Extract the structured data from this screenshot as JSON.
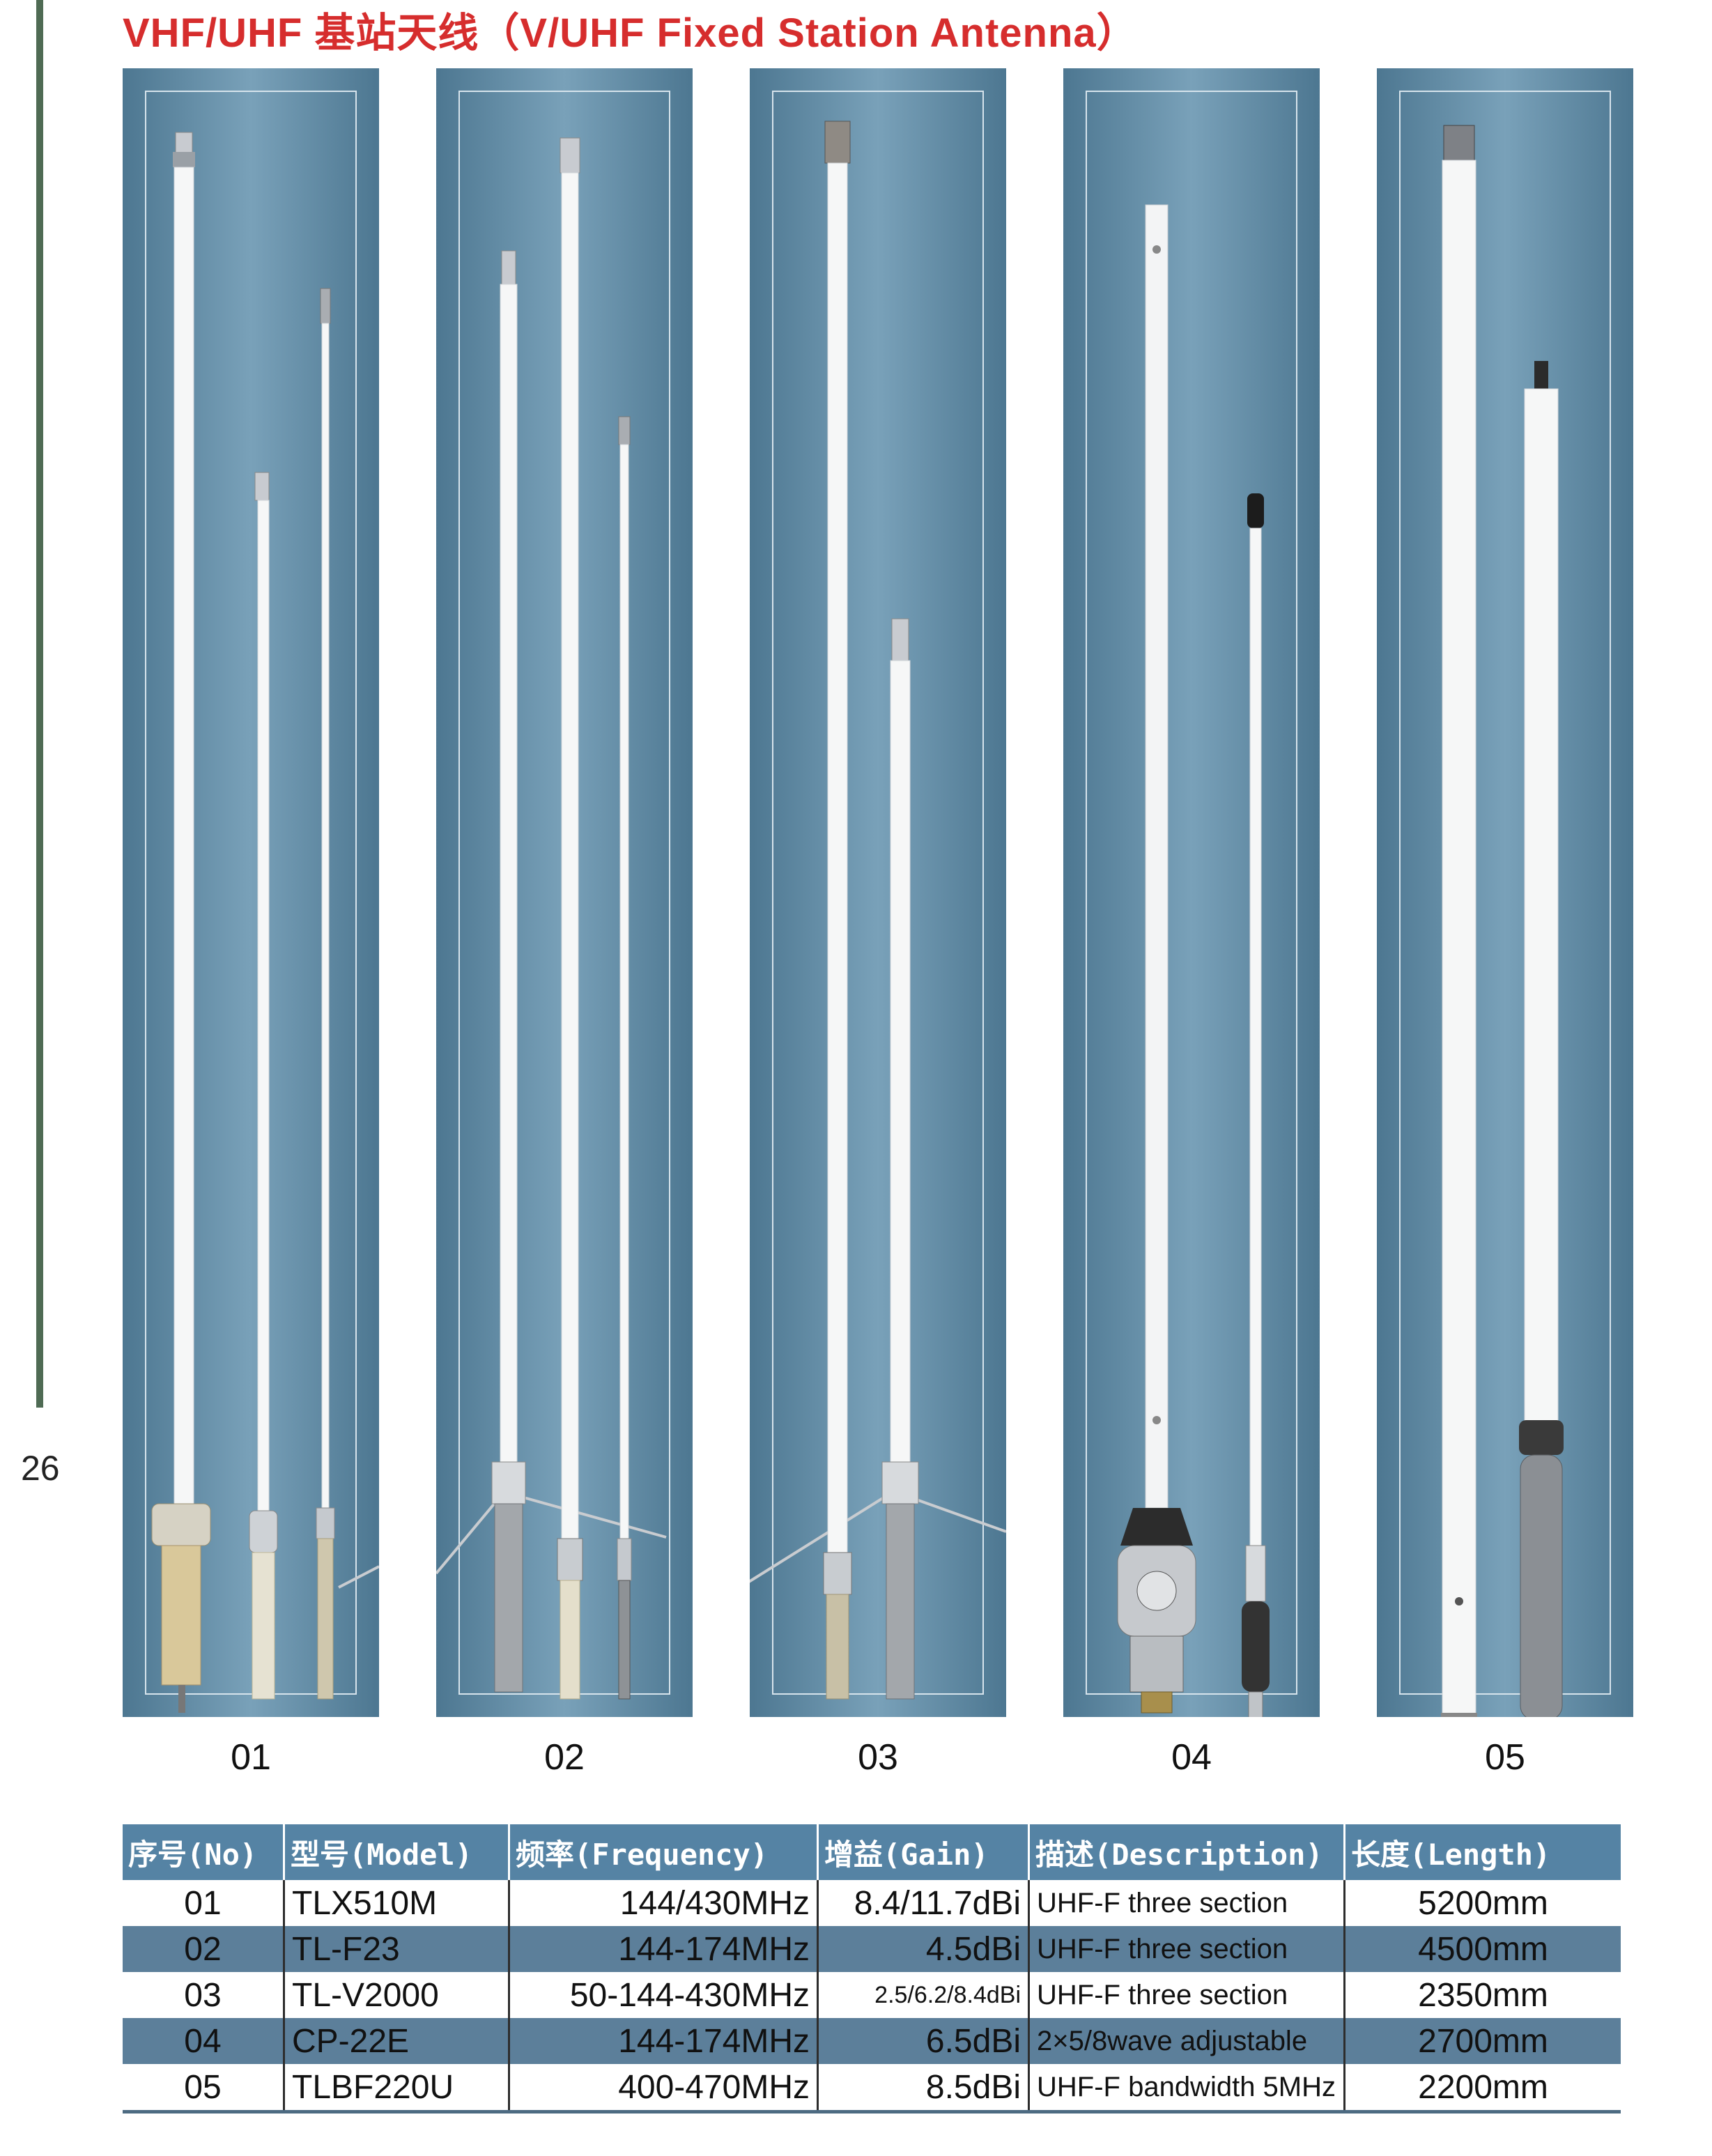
{
  "page": {
    "title": "VHF/UHF 基站天线（V/UHF Fixed Station Antenna）",
    "page_number": "26"
  },
  "products": [
    {
      "label": "01",
      "image": "three-collinear-fiberglass-antennas"
    },
    {
      "label": "02",
      "image": "three-antennas-with-ground-radials"
    },
    {
      "label": "03",
      "image": "two-antennas-with-ground-radials"
    },
    {
      "label": "04",
      "image": "aluminium-antennas-with-mount"
    },
    {
      "label": "05",
      "image": "two-section-fiberglass-antennas"
    }
  ],
  "table": {
    "headers": [
      "序号(No)",
      "型号(Model)",
      "频率(Frequency)",
      "增益(Gain)",
      "描述(Description)",
      "长度(Length)"
    ],
    "rows": [
      {
        "no": "01",
        "model": "TLX510M",
        "frequency": "144/430MHz",
        "gain": "8.4/11.7dBi",
        "description": "UHF-F three section",
        "length": "5200mm"
      },
      {
        "no": "02",
        "model": "TL-F23",
        "frequency": "144-174MHz",
        "gain": "4.5dBi",
        "description": "UHF-F three section",
        "length": "4500mm"
      },
      {
        "no": "03",
        "model": "TL-V2000",
        "frequency": "50-144-430MHz",
        "gain": "2.5/6.2/8.4dBi",
        "description": "UHF-F three section",
        "length": "2350mm"
      },
      {
        "no": "04",
        "model": "CP-22E",
        "frequency": "144-174MHz",
        "gain": "6.5dBi",
        "description": "2×5/8wave adjustable",
        "length": "2700mm"
      },
      {
        "no": "05",
        "model": "TLBF220U",
        "frequency": "400-470MHz",
        "gain": "8.5dBi",
        "description": "UHF-F  bandwidth 5MHz",
        "length": "2200mm"
      }
    ]
  }
}
